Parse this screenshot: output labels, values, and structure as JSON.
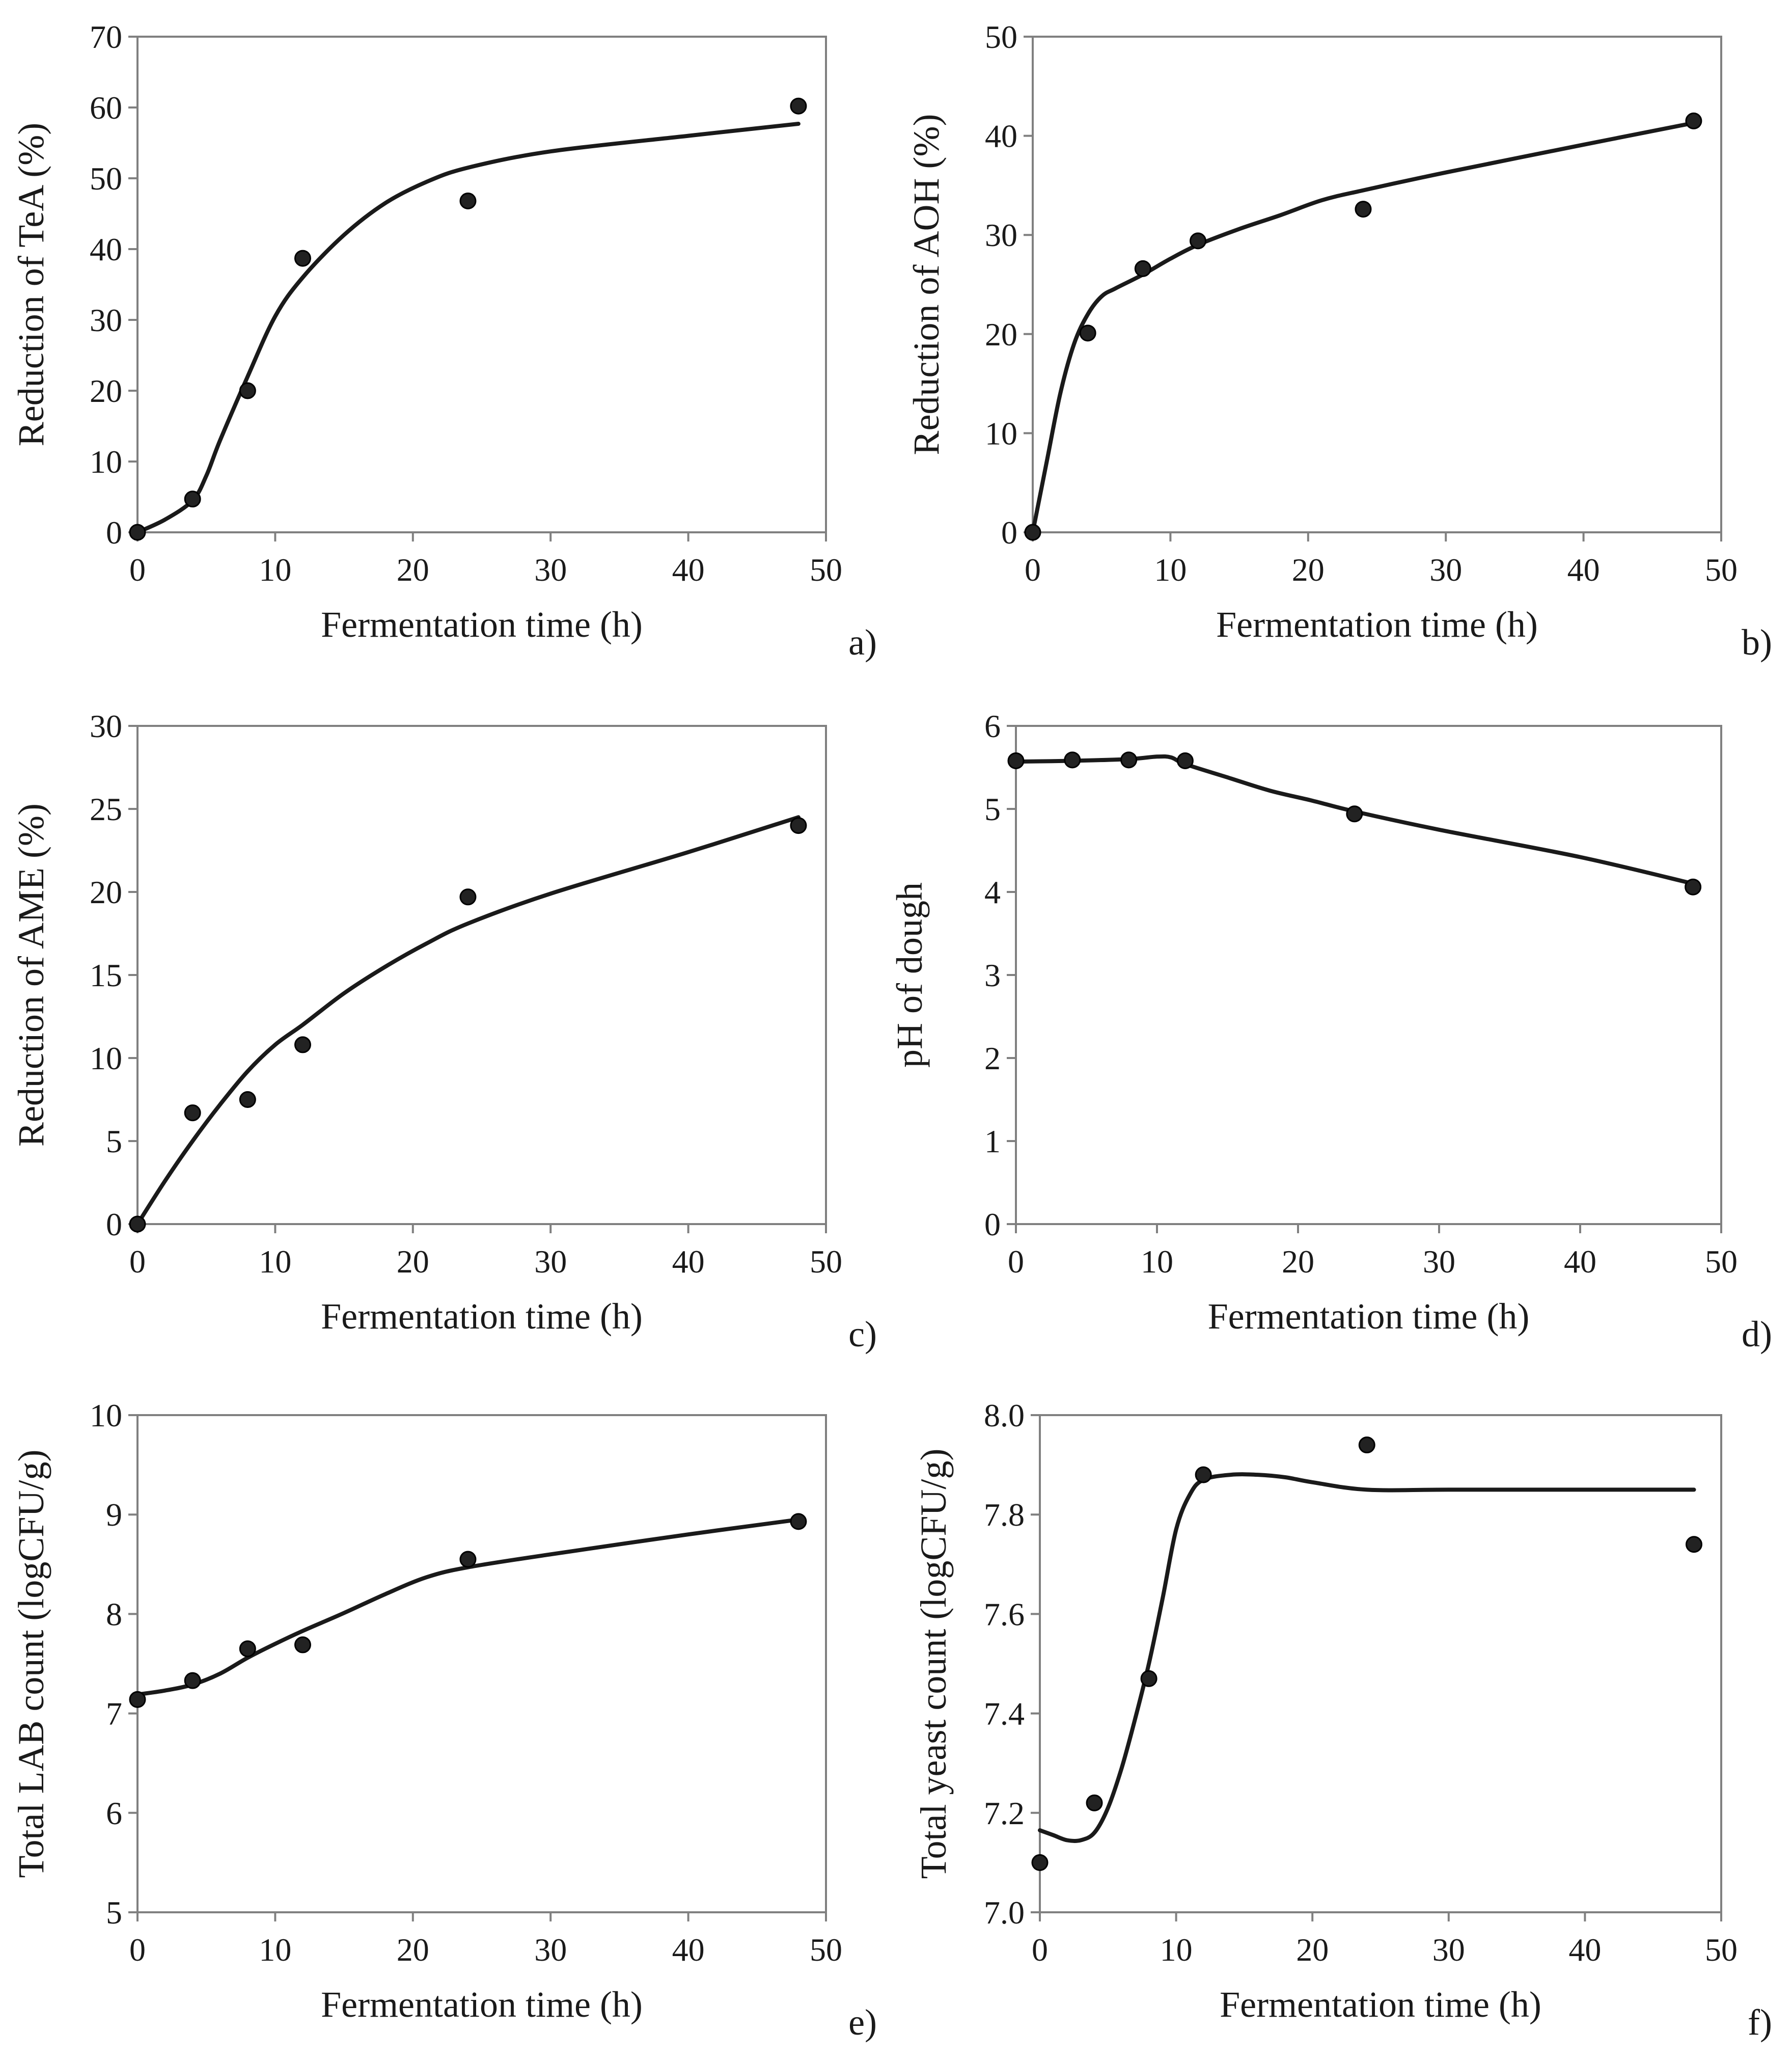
{
  "colors": {
    "ink": "#1a1a1a",
    "marker": "#222222",
    "marker_edge": "#000000",
    "frame": "#808080",
    "background": "#ffffff"
  },
  "chart_data": [
    {
      "id": "a",
      "panel_label": "a)",
      "type": "scatter",
      "title": "",
      "xlabel": "Fermentation time (h)",
      "ylabel": "Reduction of TeA (%)",
      "xlim": [
        0,
        50
      ],
      "ylim": [
        0,
        70
      ],
      "xticks": [
        0,
        10,
        20,
        30,
        40,
        50
      ],
      "yticks": [
        0,
        10,
        20,
        30,
        40,
        50,
        60,
        70
      ],
      "xtick_labels": [
        "0",
        "10",
        "20",
        "30",
        "40",
        "50"
      ],
      "ytick_labels": [
        "0",
        "10",
        "20",
        "30",
        "40",
        "50",
        "60",
        "70"
      ],
      "grid": false,
      "legend": "none",
      "series": [
        {
          "name": "observed",
          "kind": "points",
          "x": [
            0,
            4,
            8,
            12,
            24,
            48
          ],
          "y": [
            0,
            4.7,
            20,
            38.7,
            46.8,
            60.2
          ]
        },
        {
          "name": "fitted",
          "kind": "line",
          "x": [
            0,
            2,
            4,
            5,
            6,
            8,
            10,
            12,
            15,
            18,
            21,
            24,
            30,
            40,
            48
          ],
          "y": [
            0,
            1.8,
            4.5,
            8,
            13,
            22,
            30.5,
            36,
            42,
            46.5,
            49.5,
            51.5,
            53.8,
            56,
            57.7
          ]
        }
      ]
    },
    {
      "id": "b",
      "panel_label": "b)",
      "type": "scatter",
      "title": "",
      "xlabel": "Fermentation time (h)",
      "ylabel": "Reduction of AOH (%)",
      "xlim": [
        0,
        50
      ],
      "ylim": [
        0,
        50
      ],
      "xticks": [
        0,
        10,
        20,
        30,
        40,
        50
      ],
      "yticks": [
        0,
        10,
        20,
        30,
        40,
        50
      ],
      "xtick_labels": [
        "0",
        "10",
        "20",
        "30",
        "40",
        "50"
      ],
      "ytick_labels": [
        "0",
        "10",
        "20",
        "30",
        "40",
        "50"
      ],
      "grid": false,
      "legend": "none",
      "series": [
        {
          "name": "observed",
          "kind": "points",
          "x": [
            0,
            4,
            8,
            12,
            24,
            48
          ],
          "y": [
            0,
            20.1,
            26.6,
            29.4,
            32.6,
            41.5
          ]
        },
        {
          "name": "fitted",
          "kind": "line",
          "x": [
            0,
            1,
            2,
            3,
            4,
            5,
            6,
            8,
            10,
            12,
            15,
            18,
            21,
            24,
            30,
            40,
            48
          ],
          "y": [
            0,
            7,
            14,
            19,
            22,
            23.8,
            24.6,
            26,
            27.6,
            29,
            30.6,
            32,
            33.5,
            34.5,
            36.3,
            39.1,
            41.3
          ]
        }
      ]
    },
    {
      "id": "c",
      "panel_label": "c)",
      "type": "scatter",
      "title": "",
      "xlabel": "Fermentation time (h)",
      "ylabel": "Reduction of AME (%)",
      "xlim": [
        0,
        50
      ],
      "ylim": [
        0,
        30
      ],
      "xticks": [
        0,
        10,
        20,
        30,
        40,
        50
      ],
      "yticks": [
        0,
        5,
        10,
        15,
        20,
        25,
        30
      ],
      "xtick_labels": [
        "0",
        "10",
        "20",
        "30",
        "40",
        "50"
      ],
      "ytick_labels": [
        "0",
        "5",
        "10",
        "15",
        "20",
        "25",
        "30"
      ],
      "grid": false,
      "legend": "none",
      "series": [
        {
          "name": "observed",
          "kind": "points",
          "x": [
            0,
            4,
            8,
            12,
            24,
            48
          ],
          "y": [
            0,
            6.7,
            7.5,
            10.8,
            19.7,
            24
          ]
        },
        {
          "name": "fitted",
          "kind": "line",
          "x": [
            0,
            2,
            4,
            6,
            8,
            10,
            12,
            15,
            18,
            21,
            24,
            30,
            40,
            48
          ],
          "y": [
            0,
            2.6,
            5,
            7.2,
            9.2,
            10.8,
            12,
            13.9,
            15.5,
            16.9,
            18.1,
            19.9,
            22.4,
            24.5
          ]
        }
      ]
    },
    {
      "id": "d",
      "panel_label": "d)",
      "type": "scatter",
      "title": "",
      "xlabel": "Fermentation time (h)",
      "ylabel": "pH of dough",
      "xlim": [
        0,
        50
      ],
      "ylim": [
        0,
        6
      ],
      "xticks": [
        0,
        10,
        20,
        30,
        40,
        50
      ],
      "yticks": [
        0,
        1,
        2,
        3,
        4,
        5,
        6
      ],
      "xtick_labels": [
        "0",
        "10",
        "20",
        "30",
        "40",
        "50"
      ],
      "ytick_labels": [
        "0",
        "1",
        "2",
        "3",
        "4",
        "5",
        "6"
      ],
      "grid": false,
      "legend": "none",
      "series": [
        {
          "name": "observed",
          "kind": "points",
          "x": [
            0,
            4,
            8,
            12,
            24,
            48
          ],
          "y": [
            5.58,
            5.59,
            5.59,
            5.58,
            4.94,
            4.06
          ]
        },
        {
          "name": "fitted",
          "kind": "line",
          "x": [
            0,
            4,
            8,
            10,
            11,
            12,
            15,
            18,
            21,
            24,
            30,
            40,
            48
          ],
          "y": [
            5.57,
            5.58,
            5.6,
            5.63,
            5.62,
            5.54,
            5.38,
            5.22,
            5.1,
            4.97,
            4.75,
            4.42,
            4.1
          ]
        }
      ]
    },
    {
      "id": "e",
      "panel_label": "e)",
      "type": "scatter",
      "title": "",
      "xlabel": "Fermentation time (h)",
      "ylabel": "Total LAB count (logCFU/g)",
      "xlim": [
        0,
        50
      ],
      "ylim": [
        5,
        10
      ],
      "xticks": [
        0,
        10,
        20,
        30,
        40,
        50
      ],
      "yticks": [
        5,
        6,
        7,
        8,
        9,
        10
      ],
      "xtick_labels": [
        "0",
        "10",
        "20",
        "30",
        "40",
        "50"
      ],
      "ytick_labels": [
        "5",
        "6",
        "7",
        "8",
        "9",
        "10"
      ],
      "grid": false,
      "legend": "none",
      "series": [
        {
          "name": "observed",
          "kind": "points",
          "x": [
            0,
            4,
            8,
            12,
            24,
            48
          ],
          "y": [
            7.14,
            7.33,
            7.65,
            7.69,
            8.55,
            8.93
          ]
        },
        {
          "name": "fitted",
          "kind": "line",
          "x": [
            0,
            2,
            4,
            6,
            8,
            10,
            12,
            15,
            18,
            21,
            24,
            30,
            40,
            48
          ],
          "y": [
            7.19,
            7.23,
            7.29,
            7.4,
            7.56,
            7.7,
            7.83,
            8.01,
            8.2,
            8.37,
            8.47,
            8.6,
            8.8,
            8.95
          ]
        }
      ]
    },
    {
      "id": "f",
      "panel_label": "f)",
      "type": "scatter",
      "title": "",
      "xlabel": "Fermentation time (h)",
      "ylabel": "Total yeast count (logCFU/g)",
      "xlim": [
        0,
        50
      ],
      "ylim": [
        7.0,
        8.0
      ],
      "xticks": [
        0,
        10,
        20,
        30,
        40,
        50
      ],
      "yticks": [
        7.0,
        7.2,
        7.4,
        7.6,
        7.8,
        8.0
      ],
      "xtick_labels": [
        "0",
        "10",
        "20",
        "30",
        "40",
        "50"
      ],
      "ytick_labels": [
        "7.0",
        "7.2",
        "7.4",
        "7.6",
        "7.8",
        "8.0"
      ],
      "grid": false,
      "legend": "none",
      "series": [
        {
          "name": "observed",
          "kind": "points",
          "x": [
            0,
            4,
            8,
            12,
            24,
            48
          ],
          "y": [
            7.1,
            7.22,
            7.47,
            7.88,
            7.94,
            7.74
          ]
        },
        {
          "name": "fitted",
          "kind": "line",
          "x": [
            0,
            1,
            2,
            3,
            4,
            5,
            6,
            7,
            8,
            9,
            10,
            11,
            12,
            14,
            16,
            18,
            20,
            24,
            30,
            40,
            48
          ],
          "y": [
            7.165,
            7.155,
            7.145,
            7.145,
            7.16,
            7.21,
            7.29,
            7.39,
            7.5,
            7.63,
            7.77,
            7.84,
            7.87,
            7.88,
            7.88,
            7.875,
            7.865,
            7.85,
            7.85,
            7.85,
            7.85
          ]
        }
      ]
    }
  ]
}
